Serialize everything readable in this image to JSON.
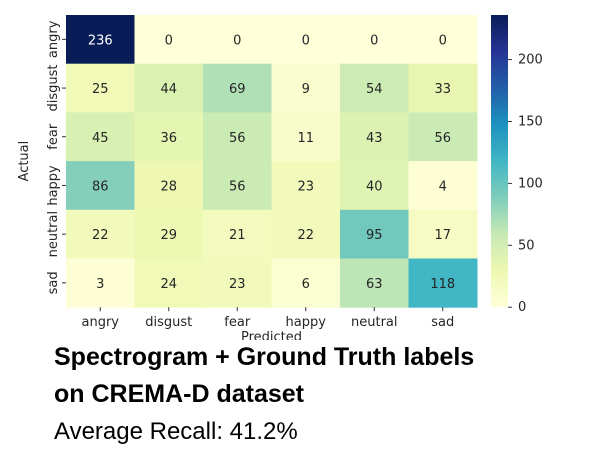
{
  "chart_data": {
    "type": "heatmap",
    "xlabel": "Predicted",
    "ylabel": "Actual",
    "x_categories": [
      "angry",
      "disgust",
      "fear",
      "happy",
      "neutral",
      "sad"
    ],
    "y_categories": [
      "angry",
      "disgust",
      "fear",
      "happy",
      "neutral",
      "sad"
    ],
    "values": [
      [
        236,
        0,
        0,
        0,
        0,
        0
      ],
      [
        25,
        44,
        69,
        9,
        54,
        33
      ],
      [
        45,
        36,
        56,
        11,
        43,
        56
      ],
      [
        86,
        28,
        56,
        23,
        40,
        4
      ],
      [
        22,
        29,
        21,
        22,
        95,
        17
      ],
      [
        3,
        24,
        23,
        6,
        63,
        118
      ]
    ],
    "colormap": "YlGnBu",
    "vmin": 0,
    "vmax": 236,
    "colorbar_ticks": [
      0,
      50,
      100,
      150,
      200
    ]
  },
  "caption": {
    "line1": "Spectrogram + Ground Truth labels",
    "line2": "on CREMA-D dataset",
    "line3": "Average Recall: 41.2%"
  }
}
